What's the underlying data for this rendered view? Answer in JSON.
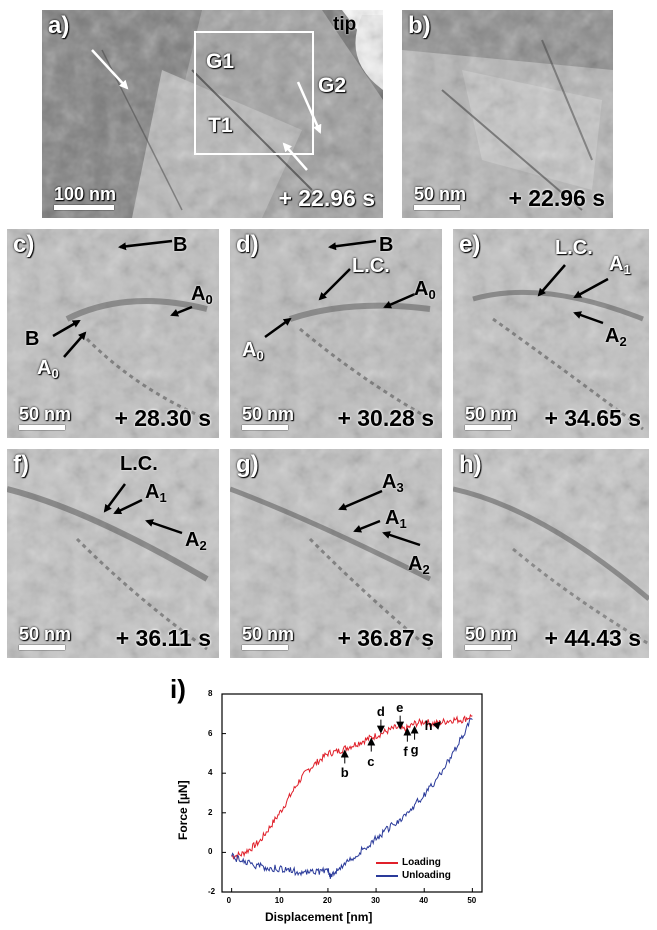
{
  "panels": {
    "a": {
      "label": "a)",
      "time": "+ 22.96 s",
      "scale": "100 nm",
      "annotations": {
        "tip": "tip",
        "g1": "G1",
        "g2": "G2",
        "t1": "T1"
      }
    },
    "b": {
      "label": "b)",
      "time": "+ 22.96 s",
      "scale": "50 nm"
    },
    "c": {
      "label": "c)",
      "time": "+ 28.30 s",
      "scale": "50 nm",
      "annotations": {
        "b_top": "B",
        "a0_right": "A",
        "b_left": "B",
        "a0_bottom": "A"
      },
      "subs": {
        "a0_right": "0",
        "a0_bottom": "0"
      }
    },
    "d": {
      "label": "d)",
      "time": "+ 30.28 s",
      "scale": "50 nm",
      "annotations": {
        "b_top": "B",
        "lc": "L.C.",
        "a0_right": "A",
        "a0_left": "A"
      },
      "subs": {
        "a0_right": "0",
        "a0_left": "0"
      }
    },
    "e": {
      "label": "e)",
      "time": "+ 34.65 s",
      "scale": "50 nm",
      "annotations": {
        "lc": "L.C.",
        "a1": "A",
        "a2": "A"
      },
      "subs": {
        "a1": "1",
        "a2": "2"
      }
    },
    "f": {
      "label": "f)",
      "time": "+ 36.11 s",
      "scale": "50 nm",
      "annotations": {
        "lc": "L.C.",
        "a1": "A",
        "a2": "A"
      },
      "subs": {
        "a1": "1",
        "a2": "2"
      }
    },
    "g": {
      "label": "g)",
      "time": "+ 36.87 s",
      "scale": "50 nm",
      "annotations": {
        "a3": "A",
        "a1": "A",
        "a2": "A"
      },
      "subs": {
        "a3": "3",
        "a1": "1",
        "a2": "2"
      }
    },
    "h": {
      "label": "h)",
      "time": "+ 44.43 s",
      "scale": "50 nm"
    }
  },
  "colors": {
    "loading": "#e0202a",
    "unloading": "#2a3a9a"
  },
  "chart_data": {
    "type": "line",
    "panel_label": "i)",
    "xlabel": "Displacement [nm]",
    "ylabel": "Force [µN]",
    "xlim": [
      -2,
      52
    ],
    "ylim": [
      -2,
      8
    ],
    "xticks": [
      0,
      10,
      20,
      30,
      40,
      50
    ],
    "yticks": [
      -2,
      0,
      2,
      4,
      6,
      8
    ],
    "legend_position": "bottom-right",
    "series": [
      {
        "name": "Loading",
        "color": "#e0202a",
        "x": [
          0,
          2,
          4,
          6,
          8,
          10,
          12,
          14,
          16,
          18,
          20,
          22,
          24,
          26,
          28,
          30,
          32,
          34,
          36,
          38,
          40,
          42,
          44,
          46,
          48,
          50
        ],
        "y": [
          -0.2,
          -0.1,
          0.2,
          0.6,
          1.3,
          2.0,
          2.8,
          3.6,
          4.2,
          4.6,
          5.0,
          5.1,
          5.3,
          5.5,
          5.7,
          5.9,
          6.1,
          6.3,
          6.2,
          6.5,
          6.6,
          6.5,
          6.6,
          6.7,
          6.7,
          6.9
        ]
      },
      {
        "name": "Unloading",
        "color": "#2a3a9a",
        "x": [
          50,
          48,
          46,
          44,
          42,
          40,
          38,
          36,
          34,
          32,
          30,
          28,
          26,
          24,
          22,
          20.5,
          20,
          18,
          16,
          14,
          12,
          10,
          8,
          6,
          4,
          2,
          0
        ],
        "y": [
          6.8,
          5.9,
          5.0,
          4.2,
          3.5,
          2.9,
          2.4,
          1.9,
          1.5,
          1.1,
          0.7,
          0.3,
          -0.1,
          -0.5,
          -0.9,
          -1.2,
          -0.8,
          -1.0,
          -1.0,
          -1.0,
          -0.9,
          -0.8,
          -0.8,
          -0.7,
          -0.6,
          -0.4,
          -0.2
        ]
      }
    ],
    "points": [
      {
        "label": "b",
        "x": 23.5,
        "y": 5.2,
        "side": "below"
      },
      {
        "label": "c",
        "x": 29,
        "y": 5.8,
        "side": "below"
      },
      {
        "label": "d",
        "x": 31,
        "y": 6.0,
        "side": "above"
      },
      {
        "label": "e",
        "x": 35,
        "y": 6.2,
        "side": "above"
      },
      {
        "label": "f",
        "x": 36.5,
        "y": 6.3,
        "side": "below"
      },
      {
        "label": "g",
        "x": 38,
        "y": 6.4,
        "side": "below"
      },
      {
        "label": "h",
        "x": 43,
        "y": 6.6,
        "side": "left"
      }
    ]
  }
}
